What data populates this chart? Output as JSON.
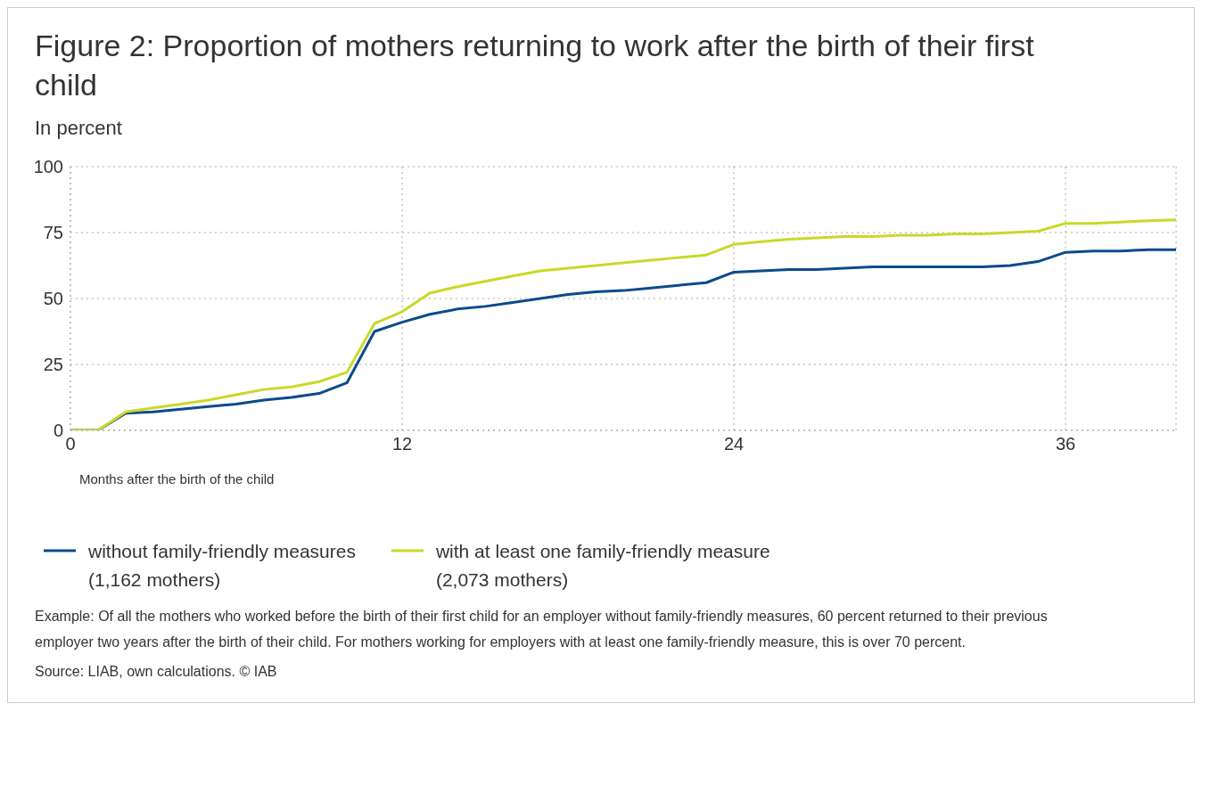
{
  "chart_data": {
    "type": "line",
    "title": "Figure 2: Proportion of mothers returning to work after the birth of their first child",
    "subtitle": "In percent",
    "xlabel": "Months after the birth of the child",
    "x": [
      0,
      1,
      2,
      3,
      4,
      5,
      6,
      7,
      8,
      9,
      10,
      11,
      12,
      13,
      14,
      15,
      16,
      17,
      18,
      19,
      20,
      21,
      22,
      23,
      24,
      25,
      26,
      27,
      28,
      29,
      30,
      31,
      32,
      33,
      34,
      35,
      36,
      37,
      38,
      39,
      40
    ],
    "series": [
      {
        "name": "without family-friendly measures\n(1,162 mothers)",
        "color": "#0b4a8b",
        "values": [
          0,
          0,
          6.5,
          7,
          8,
          9,
          10,
          11.5,
          12.5,
          14,
          18,
          37.5,
          41,
          44,
          46,
          47,
          48.5,
          50,
          51.5,
          52.5,
          53,
          54,
          55,
          56,
          60,
          60.5,
          61,
          61,
          61.5,
          62,
          62,
          62,
          62,
          62,
          62.5,
          64,
          67.5,
          68,
          68,
          68.5,
          68.5
        ]
      },
      {
        "name": "with at least one family-friendly measure\n(2,073 mothers)",
        "color": "#c9d927",
        "values": [
          0,
          0,
          7,
          8.5,
          10,
          11.5,
          13.5,
          15.5,
          16.5,
          18.5,
          22,
          40.5,
          45,
          52,
          54.5,
          56.5,
          58.5,
          60.5,
          61.5,
          62.5,
          63.5,
          64.5,
          65.5,
          66.5,
          70.5,
          71.5,
          72.5,
          73,
          73.5,
          73.5,
          74,
          74,
          74.5,
          74.5,
          75,
          75.5,
          78.5,
          78.5,
          79,
          79.5,
          79.8
        ]
      }
    ],
    "xlim": [
      0,
      40
    ],
    "xticks": [
      0,
      12,
      24,
      36
    ],
    "ylim": [
      0,
      100
    ],
    "yticks": [
      0,
      25,
      50,
      75,
      100
    ],
    "grid": true,
    "legend": "bottom",
    "marker": "none",
    "line_style": "solid",
    "annotations": [
      "Example: Of all the mothers who worked before the birth of their first child for an employer without family-friendly measures, 60 percent returned to their previous employer two years after the birth of their child. For mothers working for employers with at least one family-friendly measure, this is over 70 percent.",
      "Source: LIAB, own calculations. © IAB"
    ]
  }
}
